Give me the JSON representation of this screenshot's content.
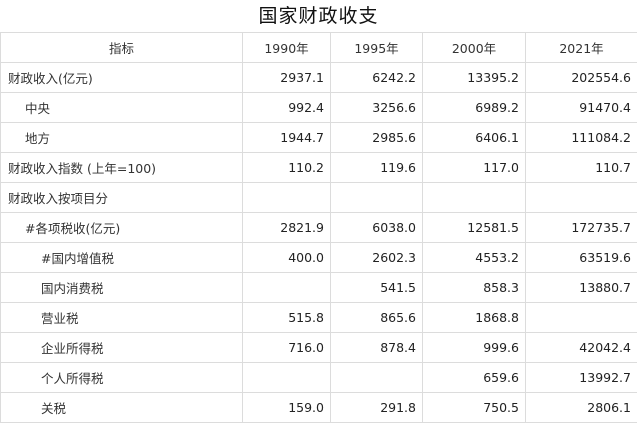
{
  "title": "国家财政收支",
  "header": {
    "indicator": "指标",
    "years": [
      "1990年",
      "1995年",
      "2000年",
      "2021年"
    ]
  },
  "rows": [
    {
      "label": "财政收入(亿元)",
      "indent": 0,
      "values": [
        "2937.1",
        "6242.2",
        "13395.2",
        "202554.6"
      ]
    },
    {
      "label": "中央",
      "indent": 1,
      "values": [
        "992.4",
        "3256.6",
        "6989.2",
        "91470.4"
      ]
    },
    {
      "label": "地方",
      "indent": 1,
      "values": [
        "1944.7",
        "2985.6",
        "6406.1",
        "111084.2"
      ]
    },
    {
      "label": "财政收入指数 (上年=100)",
      "indent": 0,
      "values": [
        "110.2",
        "119.6",
        "117.0",
        "110.7"
      ]
    },
    {
      "label": "财政收入按项目分",
      "indent": 0,
      "values": [
        "",
        "",
        "",
        ""
      ]
    },
    {
      "label": "#各项税收(亿元)",
      "indent": 1,
      "values": [
        "2821.9",
        "6038.0",
        "12581.5",
        "172735.7"
      ]
    },
    {
      "label": "#国内增值税",
      "indent": 2,
      "values": [
        "400.0",
        "2602.3",
        "4553.2",
        "63519.6"
      ]
    },
    {
      "label": "国内消费税",
      "indent": 2,
      "values": [
        "",
        "541.5",
        "858.3",
        "13880.7"
      ]
    },
    {
      "label": "营业税",
      "indent": 2,
      "values": [
        "515.8",
        "865.6",
        "1868.8",
        ""
      ]
    },
    {
      "label": "企业所得税",
      "indent": 2,
      "values": [
        "716.0",
        "878.4",
        "999.6",
        "42042.4"
      ]
    },
    {
      "label": "个人所得税",
      "indent": 2,
      "values": [
        "",
        "",
        "659.6",
        "13992.7"
      ]
    },
    {
      "label": "关税",
      "indent": 2,
      "values": [
        "159.0",
        "291.8",
        "750.5",
        "2806.1"
      ]
    }
  ]
}
